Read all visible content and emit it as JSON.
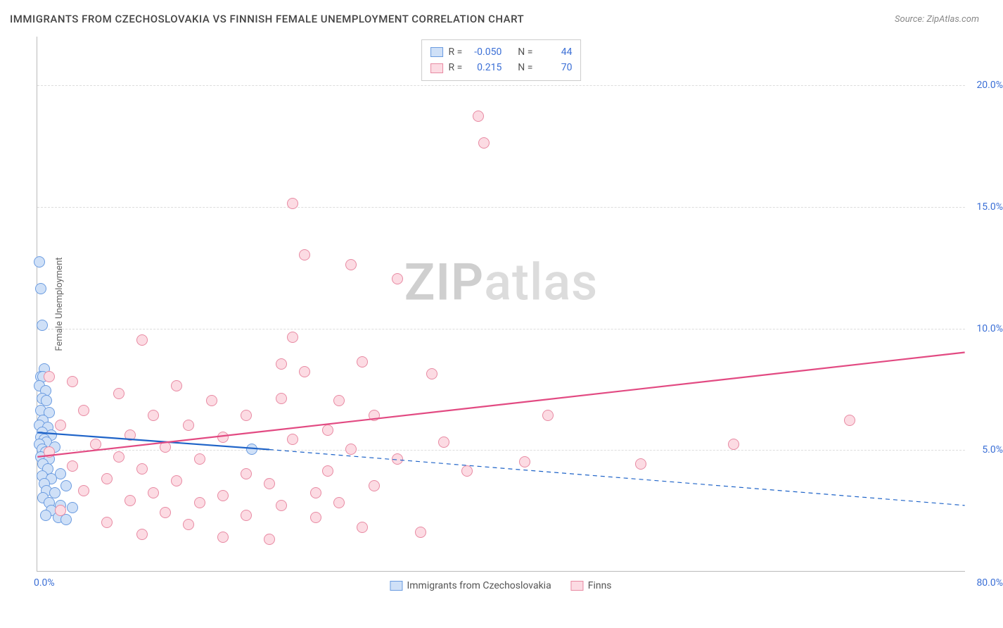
{
  "header": {
    "title": "IMMIGRANTS FROM CZECHOSLOVAKIA VS FINNISH FEMALE UNEMPLOYMENT CORRELATION CHART",
    "source_prefix": "Source: ",
    "source_name": "ZipAtlas.com"
  },
  "chart": {
    "type": "scatter",
    "ylabel": "Female Unemployment",
    "xlim": [
      0,
      80
    ],
    "ylim": [
      0,
      22
    ],
    "xtick_labels": {
      "min": "0.0%",
      "max": "80.0%"
    },
    "ytick_positions": [
      5,
      10,
      15,
      20
    ],
    "ytick_labels": [
      "5.0%",
      "10.0%",
      "15.0%",
      "20.0%"
    ],
    "grid_color": "#dddddd",
    "axis_color": "#bbbbbb",
    "background_color": "#ffffff",
    "tick_label_color": "#3b6fd6",
    "point_radius": 8,
    "point_stroke_width": 1.2,
    "series": [
      {
        "name": "Immigrants from Czechoslovakia",
        "fill": "#cfe0f7",
        "stroke": "#6a9be0",
        "R": "-0.050",
        "N": "44",
        "trend": {
          "x1": 0,
          "y1": 5.7,
          "x2": 20,
          "y2": 5.0,
          "color": "#1e63c8",
          "width": 2.2,
          "dash": "none",
          "ext_x2": 80,
          "ext_y2": 2.7,
          "ext_dash": "6,5",
          "ext_width": 1.2
        },
        "points": [
          [
            0.2,
            12.7
          ],
          [
            0.3,
            11.6
          ],
          [
            0.4,
            10.1
          ],
          [
            0.6,
            8.3
          ],
          [
            0.3,
            8.0
          ],
          [
            0.5,
            8.0
          ],
          [
            0.2,
            7.6
          ],
          [
            0.7,
            7.4
          ],
          [
            0.4,
            7.1
          ],
          [
            0.8,
            7.0
          ],
          [
            0.3,
            6.6
          ],
          [
            1.0,
            6.5
          ],
          [
            0.5,
            6.2
          ],
          [
            0.2,
            6.0
          ],
          [
            0.9,
            5.9
          ],
          [
            0.4,
            5.7
          ],
          [
            1.2,
            5.6
          ],
          [
            0.3,
            5.5
          ],
          [
            0.6,
            5.4
          ],
          [
            0.8,
            5.3
          ],
          [
            0.2,
            5.2
          ],
          [
            1.5,
            5.1
          ],
          [
            0.4,
            5.0
          ],
          [
            0.7,
            4.9
          ],
          [
            0.3,
            4.7
          ],
          [
            1.0,
            4.6
          ],
          [
            0.5,
            4.4
          ],
          [
            0.9,
            4.2
          ],
          [
            2.0,
            4.0
          ],
          [
            0.4,
            3.9
          ],
          [
            1.2,
            3.8
          ],
          [
            0.6,
            3.6
          ],
          [
            2.5,
            3.5
          ],
          [
            0.8,
            3.3
          ],
          [
            1.5,
            3.2
          ],
          [
            0.5,
            3.0
          ],
          [
            1.0,
            2.8
          ],
          [
            2.0,
            2.7
          ],
          [
            3.0,
            2.6
          ],
          [
            1.2,
            2.5
          ],
          [
            0.7,
            2.3
          ],
          [
            1.8,
            2.2
          ],
          [
            2.5,
            2.1
          ],
          [
            18.5,
            5.0
          ]
        ]
      },
      {
        "name": "Finns",
        "fill": "#fcdbe3",
        "stroke": "#e88aa3",
        "R": "0.215",
        "N": "70",
        "trend": {
          "x1": 0,
          "y1": 4.7,
          "x2": 80,
          "y2": 9.0,
          "color": "#e24a82",
          "width": 2.2,
          "dash": "none"
        },
        "points": [
          [
            38,
            18.7
          ],
          [
            38.5,
            17.6
          ],
          [
            22,
            15.1
          ],
          [
            23,
            13.0
          ],
          [
            27,
            12.6
          ],
          [
            31,
            12.0
          ],
          [
            9,
            9.5
          ],
          [
            22,
            9.6
          ],
          [
            28,
            8.6
          ],
          [
            21,
            8.5
          ],
          [
            23,
            8.2
          ],
          [
            1,
            8.0
          ],
          [
            34,
            8.1
          ],
          [
            3,
            7.8
          ],
          [
            12,
            7.6
          ],
          [
            7,
            7.3
          ],
          [
            15,
            7.0
          ],
          [
            21,
            7.1
          ],
          [
            26,
            7.0
          ],
          [
            4,
            6.6
          ],
          [
            10,
            6.4
          ],
          [
            18,
            6.4
          ],
          [
            29,
            6.4
          ],
          [
            44,
            6.4
          ],
          [
            70,
            6.2
          ],
          [
            2,
            6.0
          ],
          [
            13,
            6.0
          ],
          [
            25,
            5.8
          ],
          [
            8,
            5.6
          ],
          [
            16,
            5.5
          ],
          [
            22,
            5.4
          ],
          [
            35,
            5.3
          ],
          [
            5,
            5.2
          ],
          [
            11,
            5.1
          ],
          [
            27,
            5.0
          ],
          [
            60,
            5.2
          ],
          [
            1,
            4.9
          ],
          [
            7,
            4.7
          ],
          [
            14,
            4.6
          ],
          [
            31,
            4.6
          ],
          [
            42,
            4.5
          ],
          [
            52,
            4.4
          ],
          [
            3,
            4.3
          ],
          [
            9,
            4.2
          ],
          [
            18,
            4.0
          ],
          [
            25,
            4.1
          ],
          [
            37,
            4.1
          ],
          [
            6,
            3.8
          ],
          [
            12,
            3.7
          ],
          [
            20,
            3.6
          ],
          [
            29,
            3.5
          ],
          [
            4,
            3.3
          ],
          [
            10,
            3.2
          ],
          [
            16,
            3.1
          ],
          [
            24,
            3.2
          ],
          [
            8,
            2.9
          ],
          [
            14,
            2.8
          ],
          [
            21,
            2.7
          ],
          [
            26,
            2.8
          ],
          [
            2,
            2.5
          ],
          [
            11,
            2.4
          ],
          [
            18,
            2.3
          ],
          [
            24,
            2.2
          ],
          [
            6,
            2.0
          ],
          [
            13,
            1.9
          ],
          [
            28,
            1.8
          ],
          [
            33,
            1.6
          ],
          [
            9,
            1.5
          ],
          [
            16,
            1.4
          ],
          [
            20,
            1.3
          ]
        ]
      }
    ]
  },
  "legend_top": {
    "r_label": "R =",
    "n_label": "N ="
  },
  "watermark": {
    "part1": "ZIP",
    "part2": "atlas"
  }
}
